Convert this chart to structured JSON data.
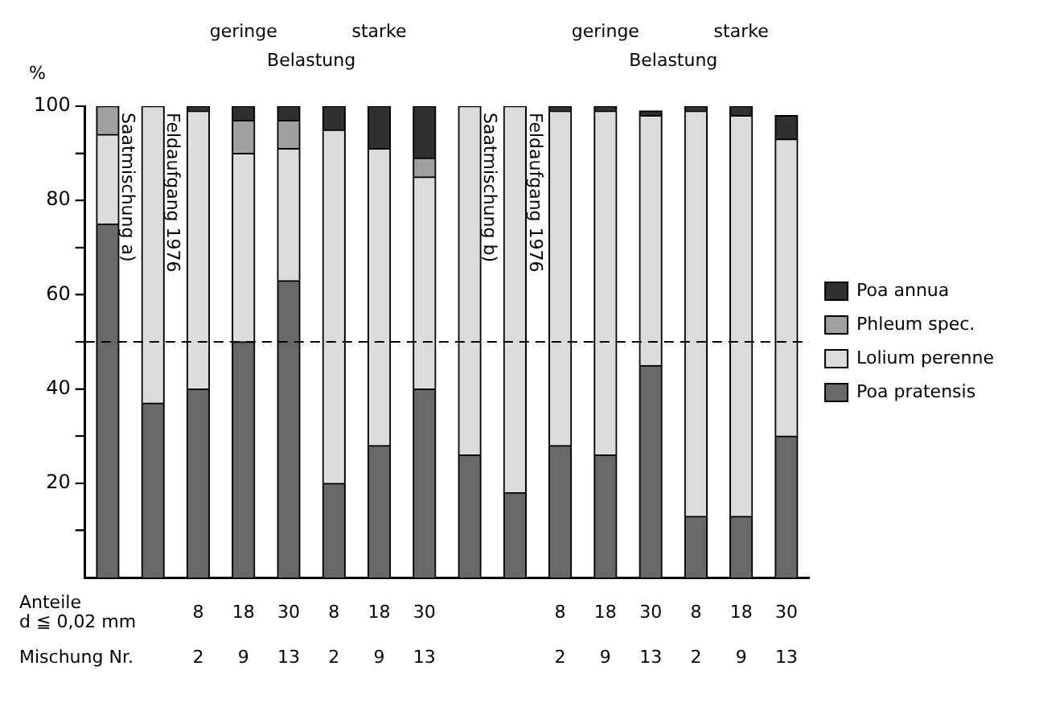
{
  "chart_data": {
    "type": "bar",
    "stacked": true,
    "ylabel": "%",
    "ylim": [
      0,
      100
    ],
    "yticks": [
      {
        "value": 10,
        "label": null
      },
      20,
      {
        "value": 30,
        "label": null
      },
      40,
      {
        "value": 50,
        "label": null
      },
      60,
      {
        "value": 70,
        "label": null
      },
      80,
      {
        "value": 90,
        "label": null
      },
      100
    ],
    "categories": [
      "Saatmischung a)",
      "Feldaufgang 1976",
      "8\n2",
      "18\n9",
      "30\n13",
      "8\n2",
      "18\n9",
      "30\n13",
      "Saatmischung b)",
      "Feldaufgang 1976",
      "8\n2",
      "18\n9",
      "30\n13",
      "8\n2",
      "18\n9",
      "30\n13"
    ],
    "series": [
      {
        "name": "Poa pratensis",
        "color": "#686868",
        "values": [
          75,
          37,
          40,
          50,
          63,
          20,
          28,
          40,
          26,
          18,
          28,
          26,
          45,
          13,
          13,
          30
        ]
      },
      {
        "name": "Lolium perenne",
        "color": "#dcdcdc",
        "values": [
          19,
          63,
          59,
          40,
          28,
          75,
          63,
          45,
          74,
          82,
          71,
          73,
          53,
          86,
          85,
          63
        ]
      },
      {
        "name": "Phleum spec.",
        "color": "#a0a0a0",
        "values": [
          6,
          0,
          0,
          7,
          6,
          0,
          0,
          4,
          0,
          0,
          0,
          0,
          0,
          0,
          0,
          0
        ]
      },
      {
        "name": "Poa annua",
        "color": "#303030",
        "values": [
          0,
          0,
          1,
          3,
          3,
          5,
          9,
          11,
          0,
          0,
          1,
          1,
          1,
          1,
          2,
          5
        ]
      }
    ],
    "ref_lines": [
      {
        "axis": "y",
        "value": 50,
        "line_style": "dashed"
      }
    ],
    "annotations": [
      "geringe",
      "starke",
      "Belastung",
      "geringe",
      "starke",
      "Belastung",
      "Anteile\nd ≦ 0,02 mm",
      "Mischung Nr."
    ],
    "legend": "right",
    "grid": false
  }
}
